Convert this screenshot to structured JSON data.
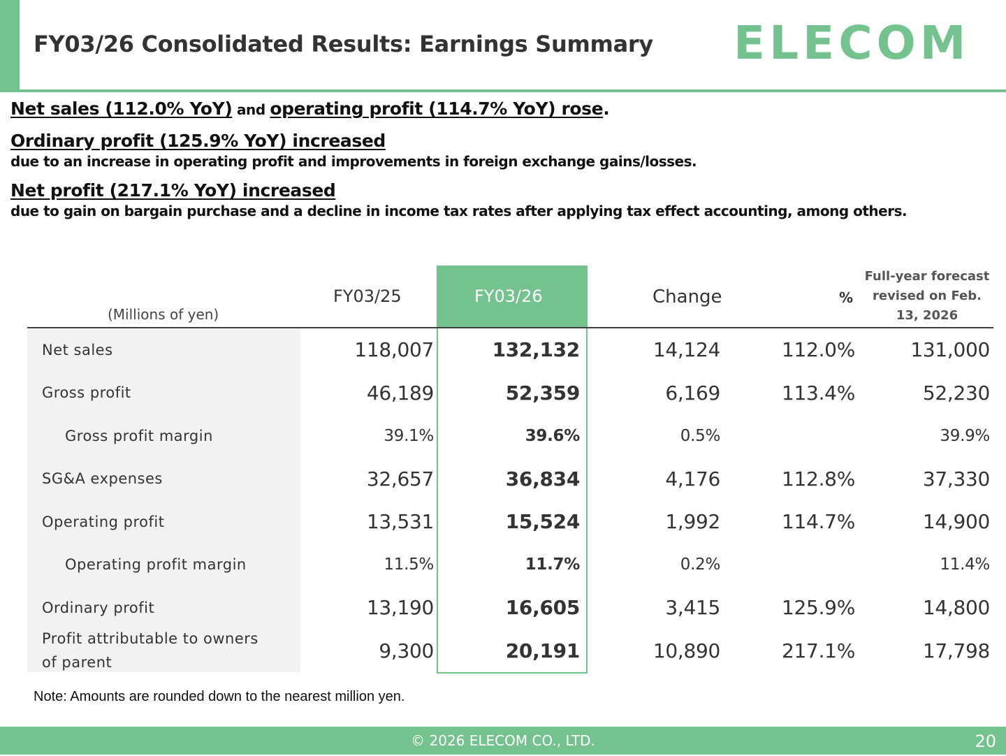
{
  "header": {
    "title": "FY03/26 Consolidated Results: Earnings Summary",
    "logo_text": "ELECOM",
    "accent_color": "#74c28e"
  },
  "highlights": {
    "h1_part1": "Net sales (112.0% YoY)",
    "h1_and": " and ",
    "h1_part2": "operating profit (114.7% YoY) rose",
    "h1_period": ".",
    "h2": "Ordinary profit (125.9% YoY) increased",
    "h2_sub": "due to an increase in operating profit and improvements in foreign exchange gains/losses.",
    "h3": "Net profit (217.1% YoY) increased",
    "h3_sub": "due to gain on bargain purchase and a decline in income tax rates after applying tax effect accounting, among others."
  },
  "table": {
    "unit": "(Millions of yen)",
    "headers": {
      "prev": "FY03/25",
      "curr": "FY03/26",
      "change": "Change",
      "pct": "%",
      "forecast": "Full-year forecast revised on Feb. 13, 2026"
    },
    "rows": [
      {
        "label": "Net sales",
        "prev": "118,007",
        "curr": "132,132",
        "change": "14,124",
        "pct": "112.0%",
        "forecast": "131,000"
      },
      {
        "label": "Gross profit",
        "prev": "46,189",
        "curr": "52,359",
        "change": "6,169",
        "pct": "113.4%",
        "forecast": "52,230"
      },
      {
        "label": "Gross profit margin",
        "prev": "39.1%",
        "curr": "39.6%",
        "change": "0.5%",
        "pct": "",
        "forecast": "39.9%"
      },
      {
        "label": "SG&A expenses",
        "prev": "32,657",
        "curr": "36,834",
        "change": "4,176",
        "pct": "112.8%",
        "forecast": "37,330"
      },
      {
        "label": "Operating profit",
        "prev": "13,531",
        "curr": "15,524",
        "change": "1,992",
        "pct": "114.7%",
        "forecast": "14,900"
      },
      {
        "label": "Operating profit margin",
        "prev": "11.5%",
        "curr": "11.7%",
        "change": "0.2%",
        "pct": "",
        "forecast": "11.4%"
      },
      {
        "label": "Ordinary profit",
        "prev": "13,190",
        "curr": "16,605",
        "change": "3,415",
        "pct": "125.9%",
        "forecast": "14,800"
      },
      {
        "label": "Profit attributable to owners of parent",
        "prev": "9,300",
        "curr": "20,191",
        "change": "10,890",
        "pct": "217.1%",
        "forecast": "17,798"
      }
    ]
  },
  "note": "Note: Amounts are rounded down to the nearest million yen.",
  "footer": {
    "copyright": "© 2026 ELECOM CO., LTD.",
    "page_number": "20"
  }
}
